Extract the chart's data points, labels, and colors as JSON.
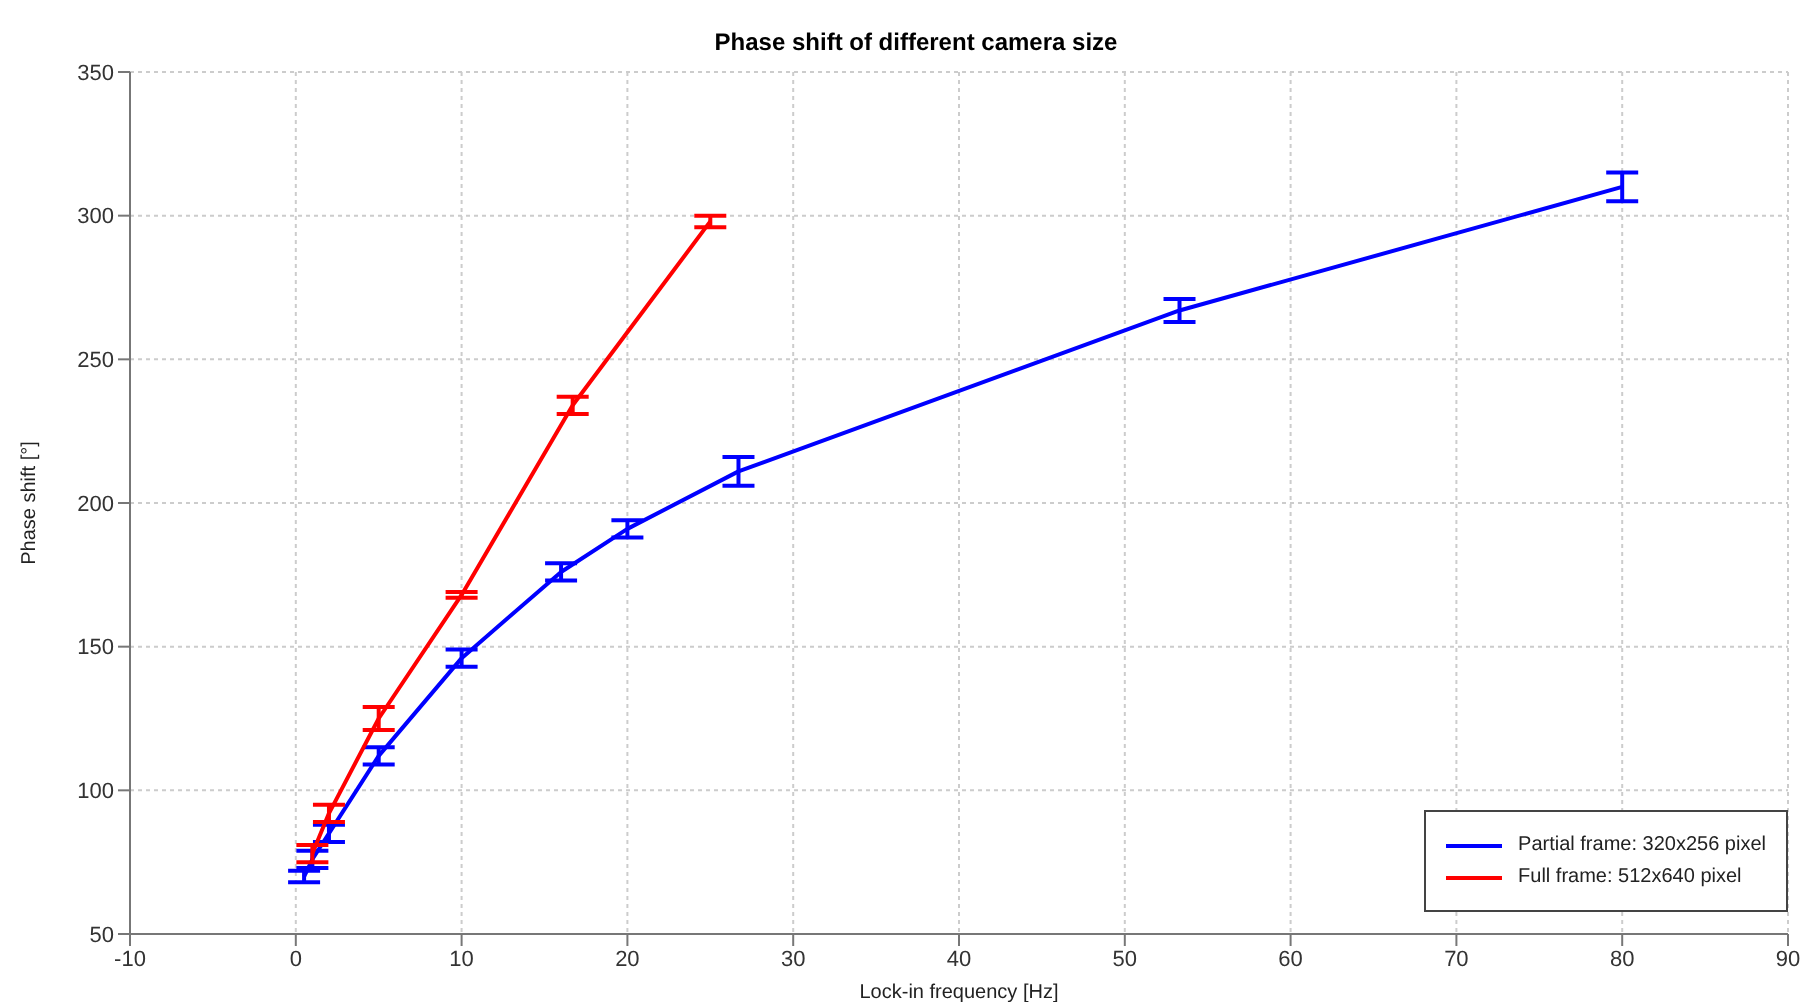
{
  "chart_data": {
    "type": "line",
    "title": "Phase shift of different camera size",
    "xlabel": "Lock-in frequency [Hz]",
    "ylabel": "Phase shift [°]",
    "xlim": [
      -10,
      90
    ],
    "xticks": [
      -10,
      0,
      10,
      20,
      30,
      40,
      50,
      60,
      70,
      80,
      90
    ],
    "ylim": [
      50,
      350
    ],
    "yticks": [
      50,
      100,
      150,
      200,
      250,
      300,
      350
    ],
    "grid": true,
    "legend": "bottom right",
    "marker": "none",
    "line_style": "solid",
    "series": [
      {
        "name": "Partial frame: 320x256 pixel",
        "color": "#0000ff",
        "x": [
          0.5,
          1,
          2,
          5,
          10,
          16,
          20,
          26.7,
          53.3,
          80
        ],
        "values": [
          70,
          76,
          85,
          112,
          146,
          176,
          191,
          211,
          267,
          310
        ],
        "errors": [
          2,
          3,
          3,
          3,
          3,
          3,
          3,
          5,
          4,
          5
        ]
      },
      {
        "name": "Full frame: 512x640 pixel",
        "color": "#ff0000",
        "x": [
          1,
          2,
          5,
          10,
          16.7,
          25
        ],
        "values": [
          78,
          92,
          125,
          168,
          234,
          298
        ],
        "errors": [
          3,
          3,
          4,
          1,
          3,
          2
        ]
      }
    ]
  }
}
